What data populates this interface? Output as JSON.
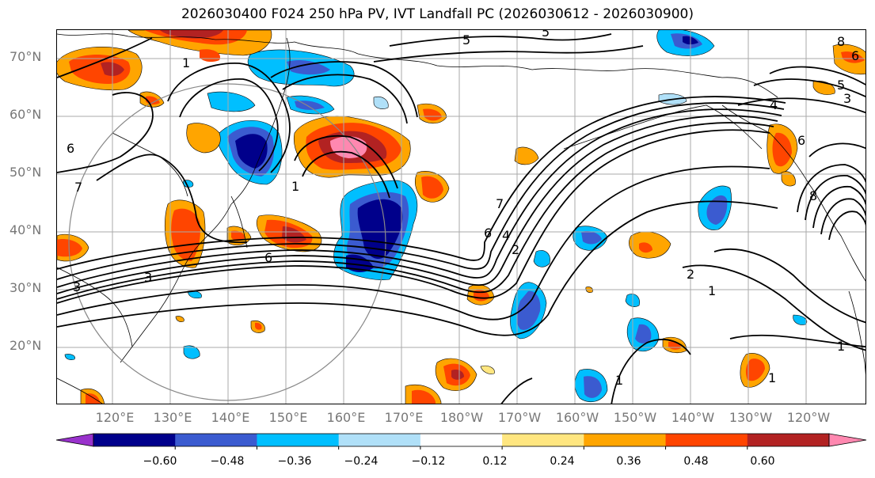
{
  "title": "2026030400 F024 250 hPa PV, IVT Landfall PC (2026030612 - 2026030900)",
  "lat_labels": [
    "70°N",
    "60°N",
    "50°N",
    "40°N",
    "30°N",
    "20°N"
  ],
  "lon_labels": [
    "120°E",
    "130°E",
    "140°E",
    "150°E",
    "160°E",
    "170°E",
    "180°W",
    "170°W",
    "160°W",
    "150°W",
    "140°W",
    "130°W",
    "120°W"
  ],
  "colorbar": {
    "ticks": [
      "−0.60",
      "−0.48",
      "−0.36",
      "−0.24",
      "−0.12",
      "0.12",
      "0.24",
      "0.36",
      "0.48",
      "0.60"
    ],
    "colors": [
      "#9932cc",
      "#00008b",
      "#3b5bd0",
      "#00bfff",
      "#b0e0f8",
      "#ffffff",
      "#ffe680",
      "#ffa500",
      "#ff4500",
      "#b22222",
      "#ff88b0"
    ]
  },
  "contour_labels": [
    "5",
    "5",
    "8",
    "6",
    "5",
    "3",
    "4",
    "6",
    "8",
    "7",
    "6",
    "1",
    "6",
    "3",
    "3",
    "6",
    "7",
    "4",
    "2",
    "1",
    "2",
    "1",
    "1",
    "1",
    "1"
  ],
  "colors": {
    "grid": "#aaaaaa",
    "contour": "#000000",
    "circle": "#888888"
  }
}
